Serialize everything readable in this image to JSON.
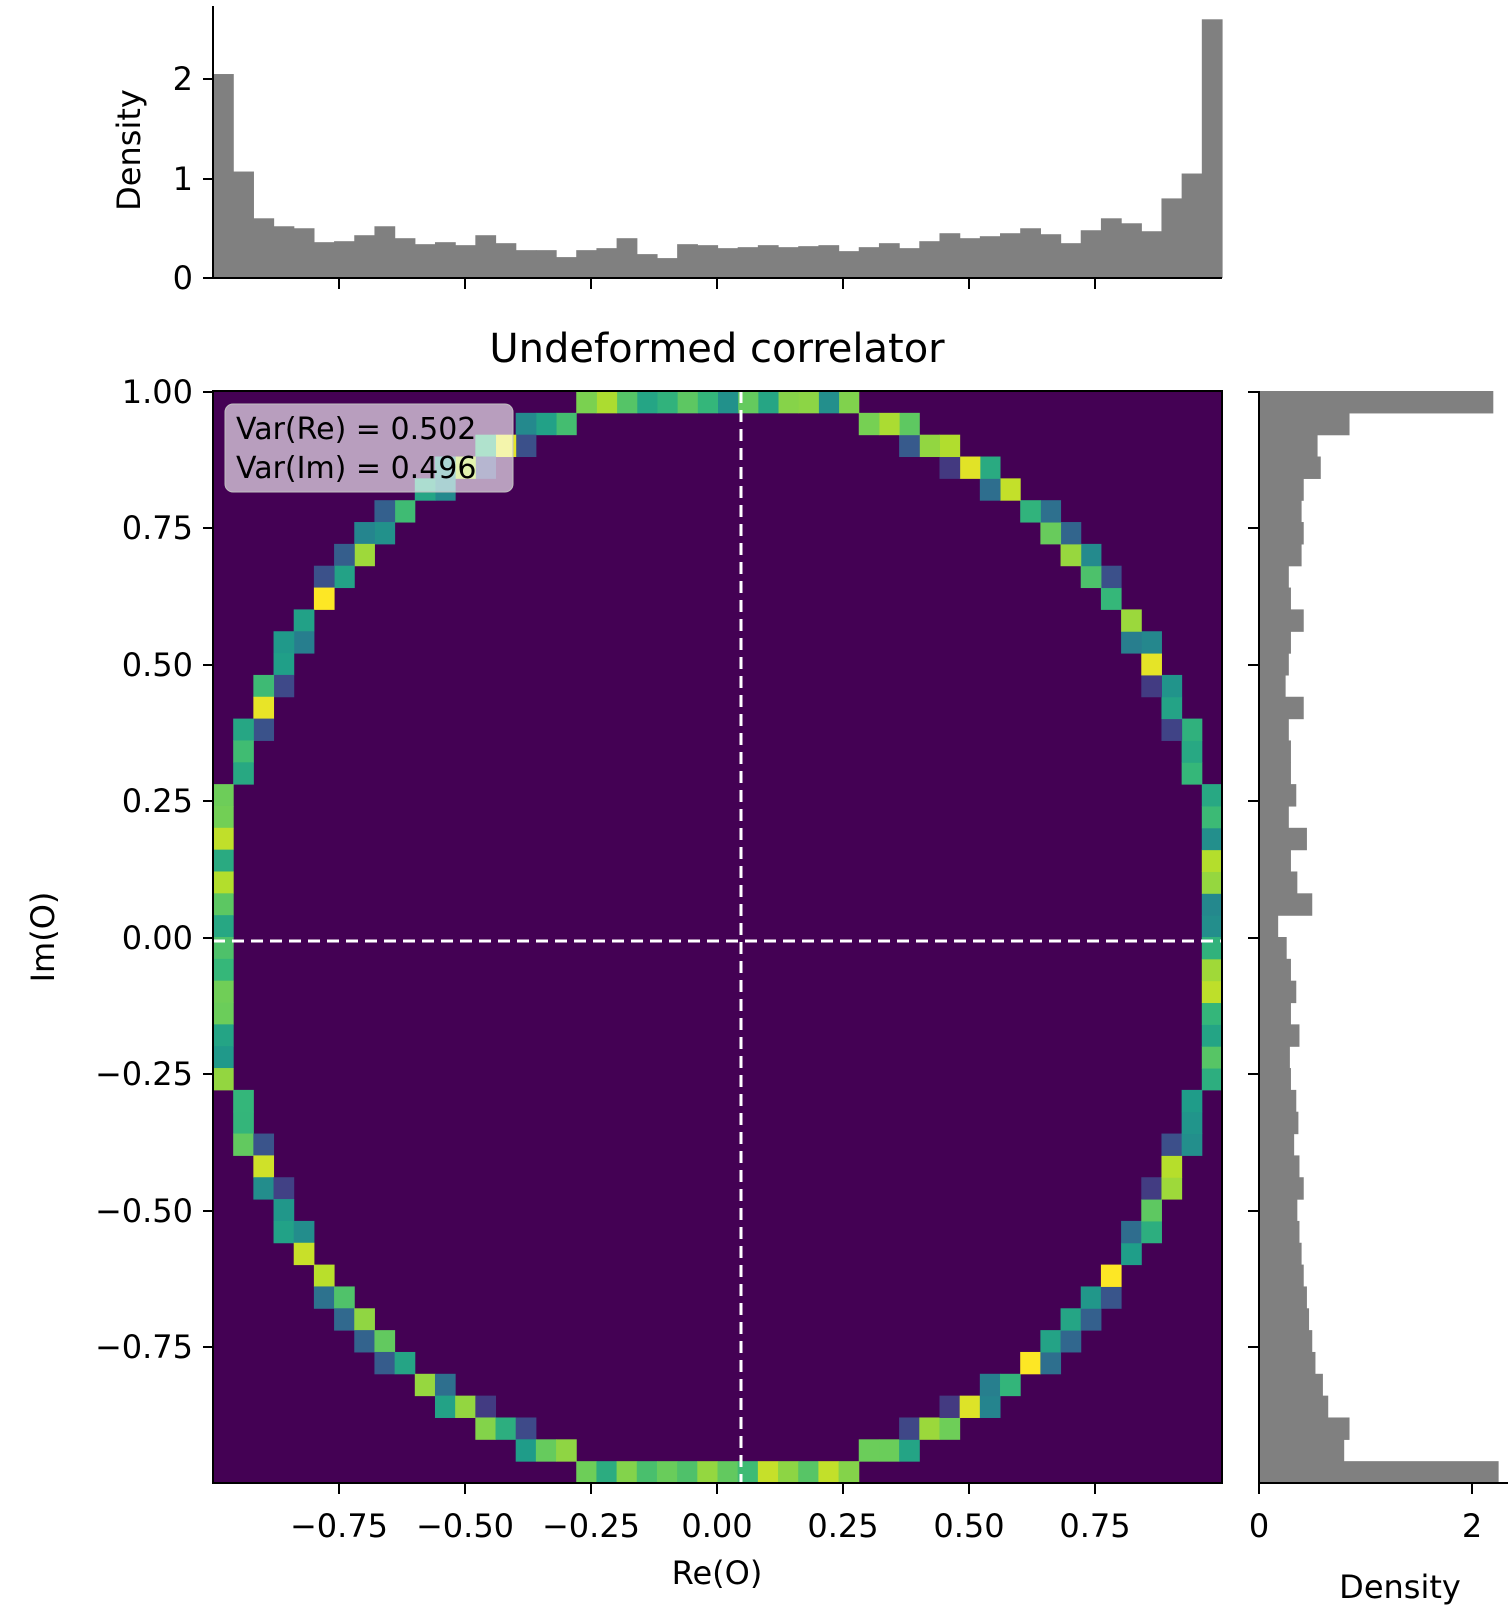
{
  "chart_data": [
    {
      "panel": "top-histogram",
      "type": "bar",
      "ylabel": "Density",
      "xlim": [
        -1.0,
        1.0
      ],
      "ylim": [
        0,
        2.6
      ],
      "yticks": [
        "0",
        "1",
        "2"
      ],
      "bin_edges_start": -1.0,
      "bin_width": 0.04,
      "values": [
        2.05,
        1.07,
        0.6,
        0.52,
        0.5,
        0.36,
        0.37,
        0.43,
        0.52,
        0.4,
        0.34,
        0.36,
        0.33,
        0.43,
        0.35,
        0.28,
        0.28,
        0.21,
        0.28,
        0.3,
        0.4,
        0.24,
        0.2,
        0.34,
        0.33,
        0.3,
        0.31,
        0.33,
        0.31,
        0.32,
        0.33,
        0.27,
        0.31,
        0.35,
        0.3,
        0.37,
        0.45,
        0.4,
        0.42,
        0.45,
        0.5,
        0.44,
        0.35,
        0.48,
        0.6,
        0.55,
        0.47,
        0.8,
        1.05,
        2.6
      ],
      "color": "#808080"
    },
    {
      "panel": "main-heatmap",
      "type": "heatmap",
      "title": "Undeformed correlator",
      "xlabel": "Re(O)",
      "ylabel": "Im(O)",
      "xlim": [
        -1.0,
        1.0
      ],
      "ylim": [
        -1.0,
        1.0
      ],
      "xticks": [
        "−0.75",
        "−0.50",
        "−0.25",
        "0.00",
        "0.25",
        "0.50",
        "0.75"
      ],
      "yticks": [
        "1.00",
        "0.75",
        "0.50",
        "0.25",
        "0.00",
        "−0.25",
        "−0.50",
        "−0.75"
      ],
      "bins": 50,
      "distribution": "points on the unit circle |O| = 1",
      "colormap": "viridis",
      "background_color": "#440154",
      "reference_lines": [
        "Re(O) = 0 (dashed, white)",
        "Im(O) = 0 (dashed, white)"
      ],
      "annotation": [
        "Var(Re) = 0.502",
        "Var(Im) = 0.496"
      ]
    },
    {
      "panel": "right-histogram",
      "type": "bar",
      "orientation": "horizontal",
      "xlabel": "Density",
      "xlim": [
        0,
        2.6
      ],
      "ylim": [
        -1.0,
        1.0
      ],
      "xticks": [
        "0",
        "2"
      ],
      "bin_edges_start": -1.0,
      "bin_width": 0.04,
      "values": [
        2.25,
        0.8,
        0.85,
        0.65,
        0.6,
        0.53,
        0.5,
        0.47,
        0.45,
        0.42,
        0.4,
        0.38,
        0.36,
        0.42,
        0.38,
        0.33,
        0.37,
        0.35,
        0.3,
        0.29,
        0.38,
        0.3,
        0.35,
        0.3,
        0.26,
        0.18,
        0.5,
        0.36,
        0.3,
        0.45,
        0.28,
        0.35,
        0.3,
        0.3,
        0.28,
        0.42,
        0.25,
        0.28,
        0.3,
        0.42,
        0.3,
        0.28,
        0.4,
        0.42,
        0.4,
        0.42,
        0.58,
        0.55,
        0.85,
        2.2
      ],
      "color": "#808080"
    }
  ]
}
